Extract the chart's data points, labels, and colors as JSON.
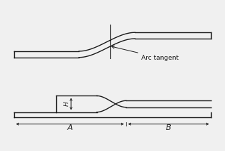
{
  "bg_color": "#f0f0f0",
  "line_color": "#1a1a1a",
  "lw": 1.0,
  "fig_width": 3.2,
  "fig_height": 2.15,
  "arc_tangent_label": "Arc tangent",
  "label_A": "A",
  "label_B": "B",
  "label_H": "H"
}
